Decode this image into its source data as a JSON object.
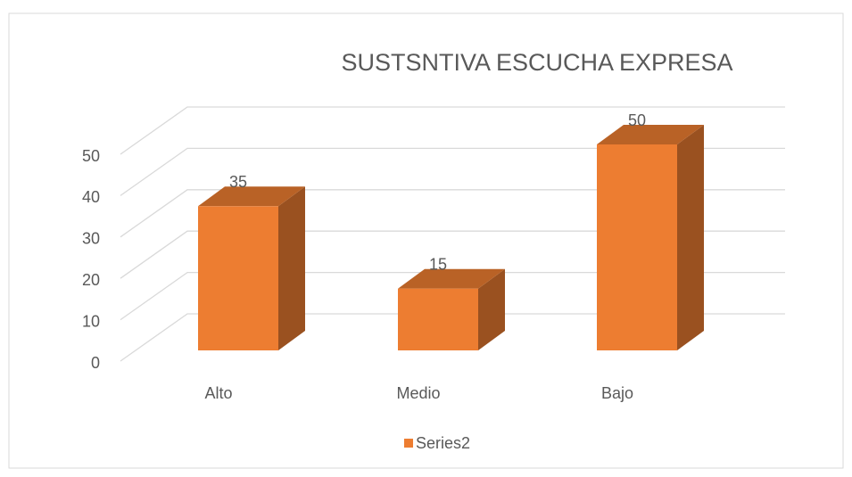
{
  "chart_data": {
    "type": "bar3d",
    "title": "SUSTSNTIVA  ESCUCHA EXPRESA",
    "categories": [
      "Alto",
      "Medio",
      "Bajo"
    ],
    "series": [
      {
        "name": "Series2",
        "color": "#ed7d31",
        "values": [
          35,
          15,
          50
        ]
      }
    ],
    "ylim": [
      0,
      50
    ],
    "yticks": [
      0,
      10,
      20,
      30,
      40,
      50
    ],
    "grid": true,
    "legend": "bottom"
  }
}
